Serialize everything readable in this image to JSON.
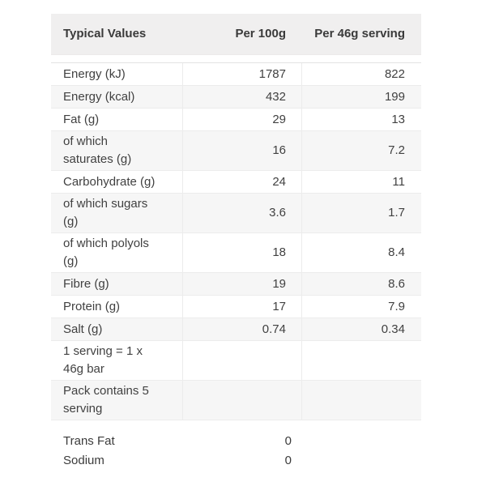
{
  "chart_data": {
    "type": "table",
    "columns": [
      "Typical Values",
      "Per 100g",
      "Per 46g serving"
    ],
    "rows": [
      [
        "Energy (kJ)",
        "1787",
        "822"
      ],
      [
        "Energy (kcal)",
        "432",
        "199"
      ],
      [
        "Fat (g)",
        "29",
        "13"
      ],
      [
        "of which\nsaturates (g)",
        "16",
        "7.2"
      ],
      [
        "Carbohydrate (g)",
        "24",
        "11"
      ],
      [
        "of which sugars\n(g)",
        "3.6",
        "1.7"
      ],
      [
        "of which polyols\n(g)",
        "18",
        "8.4"
      ],
      [
        "Fibre (g)",
        "19",
        "8.6"
      ],
      [
        "Protein (g)",
        "17",
        "7.9"
      ],
      [
        "Salt (g)",
        "0.74",
        "0.34"
      ],
      [
        "1 serving = 1 x\n46g bar",
        "",
        ""
      ],
      [
        "Pack contains 5\nserving",
        "",
        ""
      ]
    ],
    "footer_rows": [
      [
        "Trans Fat",
        "0"
      ],
      [
        "Sodium",
        "0"
      ]
    ],
    "layout": {
      "legend": "none",
      "grid": "row-and-column-borders",
      "striped_rows": true
    }
  },
  "colors": {
    "header_bg": "#f0efef",
    "stripe_bg": "#f6f6f6",
    "border": "#ececec",
    "text": "#414141"
  }
}
